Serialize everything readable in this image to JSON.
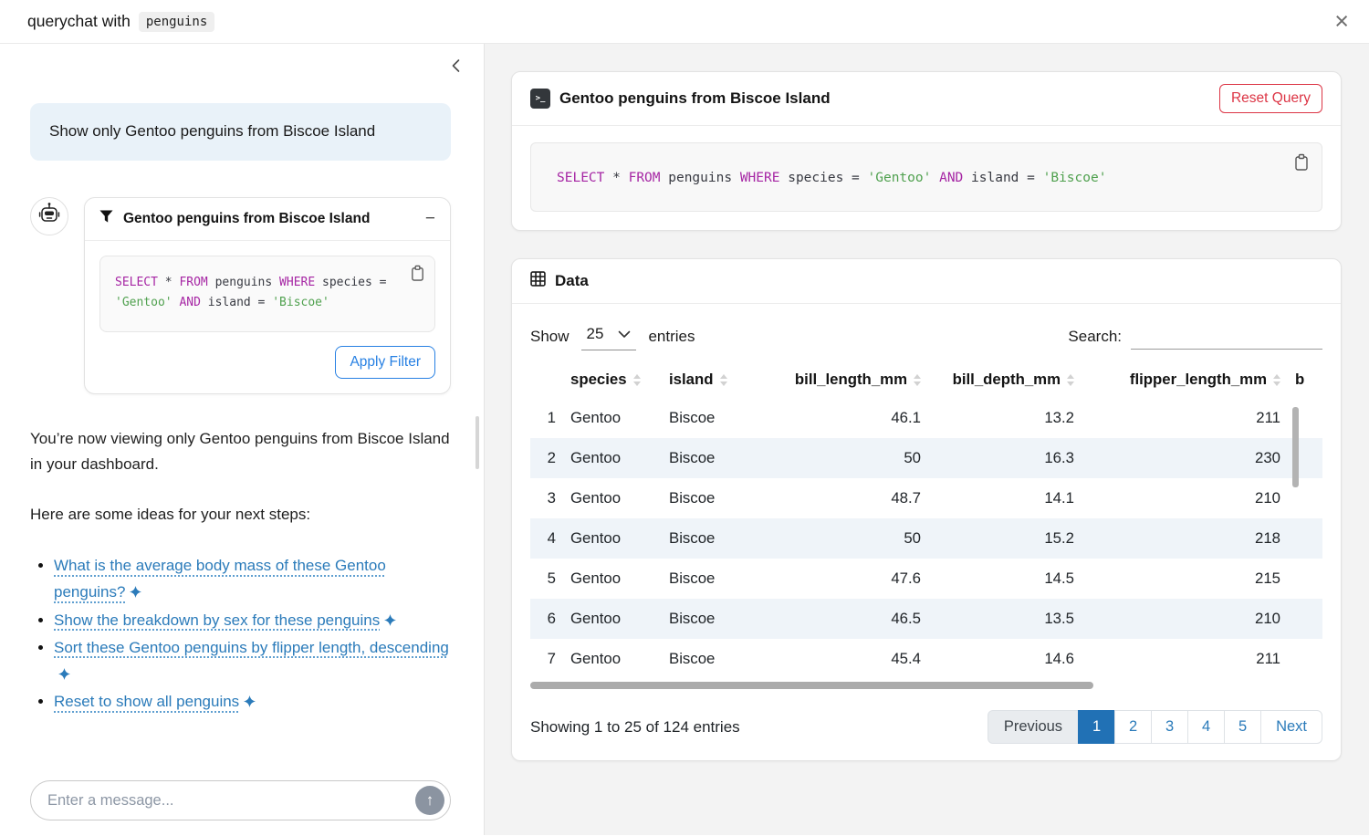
{
  "header": {
    "title": "querychat with",
    "dataset_badge": "penguins"
  },
  "colors": {
    "accent_blue": "#2171b5",
    "link_blue": "#2b7bba",
    "danger_red": "#dc3545",
    "sql_keyword": "#a626a4",
    "sql_string": "#50a14f",
    "user_bubble_bg": "#e9f2f9",
    "row_stripe_bg": "#eff4f9"
  },
  "sql_tokens": [
    {
      "text": "SELECT",
      "type": "keyword"
    },
    {
      "text": " * ",
      "type": "plain"
    },
    {
      "text": "FROM",
      "type": "keyword"
    },
    {
      "text": " penguins ",
      "type": "plain"
    },
    {
      "text": "WHERE",
      "type": "keyword"
    },
    {
      "text": " species = ",
      "type": "plain"
    },
    {
      "text": "'Gentoo'",
      "type": "string"
    },
    {
      "text": " ",
      "type": "plain"
    },
    {
      "text": "AND",
      "type": "keyword"
    },
    {
      "text": " island = ",
      "type": "plain"
    },
    {
      "text": "'Biscoe'",
      "type": "string"
    }
  ],
  "sidebar": {
    "user_message": "Show only Gentoo penguins from Biscoe Island",
    "filter_card": {
      "title": "Gentoo penguins from Biscoe Island",
      "collapse_label": "−",
      "apply_button_label": "Apply Filter"
    },
    "assistant_paragraphs": [
      "You’re now viewing only Gentoo penguins from Biscoe Island in your dashboard.",
      "Here are some ideas for your next steps:"
    ],
    "suggestions": [
      "What is the average body mass of these Gentoo penguins?",
      "Show the breakdown by sex for these penguins",
      "Sort these Gentoo penguins by flipper length, descending",
      "Reset to show all penguins"
    ],
    "input_placeholder": "Enter a message..."
  },
  "main": {
    "query_card": {
      "title": "Gentoo penguins from Biscoe Island",
      "reset_button_label": "Reset Query"
    },
    "data_card": {
      "title": "Data",
      "show_label": "Show",
      "page_size_value": "25",
      "entries_label": "entries",
      "search_label": "Search:",
      "table": {
        "columns": [
          {
            "label": "",
            "align": "right",
            "sortable": false
          },
          {
            "label": "species",
            "align": "left",
            "sortable": true
          },
          {
            "label": "island",
            "align": "left",
            "sortable": true
          },
          {
            "label": "bill_length_mm",
            "align": "right",
            "sortable": true
          },
          {
            "label": "bill_depth_mm",
            "align": "right",
            "sortable": true
          },
          {
            "label": "flipper_length_mm",
            "align": "right",
            "sortable": true
          },
          {
            "label": "b",
            "align": "left",
            "sortable": false
          }
        ],
        "rows": [
          [
            "1",
            "Gentoo",
            "Biscoe",
            "46.1",
            "13.2",
            "211",
            ""
          ],
          [
            "2",
            "Gentoo",
            "Biscoe",
            "50",
            "16.3",
            "230",
            ""
          ],
          [
            "3",
            "Gentoo",
            "Biscoe",
            "48.7",
            "14.1",
            "210",
            ""
          ],
          [
            "4",
            "Gentoo",
            "Biscoe",
            "50",
            "15.2",
            "218",
            ""
          ],
          [
            "5",
            "Gentoo",
            "Biscoe",
            "47.6",
            "14.5",
            "215",
            ""
          ],
          [
            "6",
            "Gentoo",
            "Biscoe",
            "46.5",
            "13.5",
            "210",
            ""
          ],
          [
            "7",
            "Gentoo",
            "Biscoe",
            "45.4",
            "14.6",
            "211",
            ""
          ]
        ]
      },
      "info_text": "Showing 1 to 25 of 124 entries",
      "pagination": {
        "previous_label": "Previous",
        "pages": [
          "1",
          "2",
          "3",
          "4",
          "5"
        ],
        "active_page": "1",
        "next_label": "Next"
      }
    }
  }
}
